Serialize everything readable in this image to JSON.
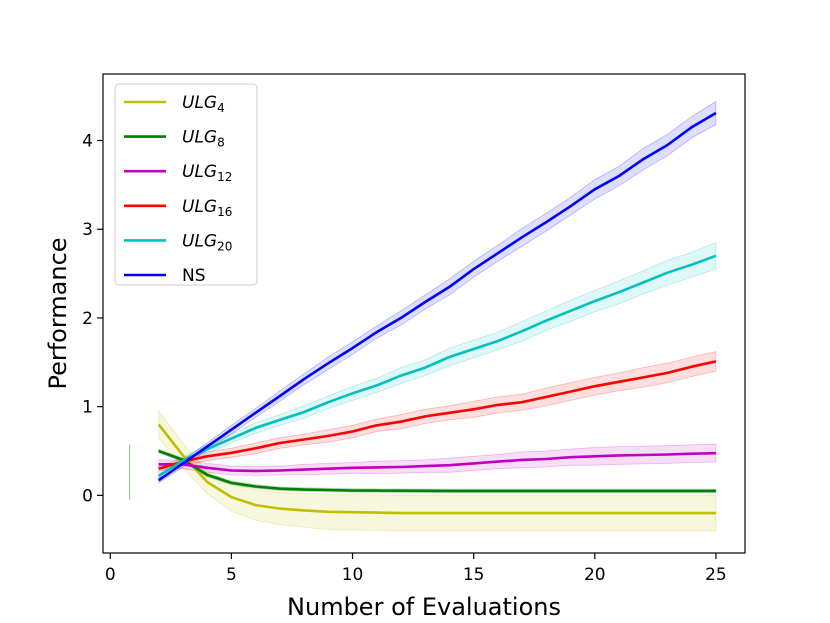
{
  "chart_data": {
    "type": "line",
    "title": "",
    "xlabel": "Number of Evaluations",
    "ylabel": "Performance",
    "xlim": [
      -0.3,
      26.2
    ],
    "ylim": [
      -0.65,
      4.75
    ],
    "xticks": [
      0,
      5,
      10,
      15,
      20,
      25
    ],
    "yticks": [
      0,
      1,
      2,
      3,
      4
    ],
    "legend_position": "top-left",
    "x": [
      2,
      3,
      4,
      5,
      6,
      7,
      8,
      9,
      10,
      11,
      12,
      13,
      14,
      15,
      16,
      17,
      18,
      19,
      20,
      21,
      22,
      23,
      24,
      25
    ],
    "series": [
      {
        "name": "ULG",
        "sub": "4",
        "color": "#bfbf00",
        "values": [
          0.8,
          0.45,
          0.15,
          -0.02,
          -0.11,
          -0.15,
          -0.17,
          -0.185,
          -0.19,
          -0.195,
          -0.2,
          -0.2,
          -0.2,
          -0.2,
          -0.2,
          -0.2,
          -0.2,
          -0.2,
          -0.2,
          -0.2,
          -0.2,
          -0.2,
          -0.2,
          -0.2
        ],
        "band": [
          0.15,
          0.14,
          0.13,
          0.16,
          0.17,
          0.18,
          0.19,
          0.2,
          0.2,
          0.2,
          0.2,
          0.2,
          0.2,
          0.2,
          0.2,
          0.2,
          0.2,
          0.2,
          0.2,
          0.2,
          0.2,
          0.2,
          0.2,
          0.2
        ]
      },
      {
        "name": "ULG",
        "sub": "8",
        "color": "#007f00",
        "values": [
          0.5,
          0.4,
          0.23,
          0.14,
          0.1,
          0.075,
          0.065,
          0.06,
          0.055,
          0.053,
          0.052,
          0.051,
          0.05,
          0.05,
          0.05,
          0.05,
          0.05,
          0.05,
          0.05,
          0.05,
          0.05,
          0.05,
          0.05,
          0.05
        ],
        "band": [
          0.02,
          0.02,
          0.02,
          0.02,
          0.02,
          0.02,
          0.02,
          0.02,
          0.02,
          0.02,
          0.02,
          0.02,
          0.02,
          0.02,
          0.02,
          0.02,
          0.02,
          0.02,
          0.02,
          0.02,
          0.02,
          0.02,
          0.02,
          0.02
        ]
      },
      {
        "name": "ULG",
        "sub": "12",
        "color": "#bf00bf",
        "values": [
          0.35,
          0.35,
          0.31,
          0.28,
          0.275,
          0.28,
          0.29,
          0.3,
          0.31,
          0.315,
          0.32,
          0.33,
          0.34,
          0.36,
          0.38,
          0.4,
          0.41,
          0.43,
          0.44,
          0.45,
          0.455,
          0.46,
          0.47,
          0.475
        ],
        "band": [
          0.05,
          0.05,
          0.05,
          0.05,
          0.05,
          0.05,
          0.06,
          0.06,
          0.06,
          0.07,
          0.07,
          0.07,
          0.08,
          0.08,
          0.08,
          0.09,
          0.09,
          0.09,
          0.1,
          0.1,
          0.1,
          0.1,
          0.1,
          0.1
        ]
      },
      {
        "name": "ULG",
        "sub": "16",
        "color": "#ff0000",
        "values": [
          0.3,
          0.38,
          0.44,
          0.48,
          0.53,
          0.59,
          0.63,
          0.67,
          0.72,
          0.79,
          0.83,
          0.89,
          0.93,
          0.97,
          1.02,
          1.05,
          1.11,
          1.17,
          1.23,
          1.28,
          1.33,
          1.38,
          1.45,
          1.51
        ],
        "band": [
          0.03,
          0.04,
          0.05,
          0.05,
          0.06,
          0.06,
          0.06,
          0.07,
          0.07,
          0.07,
          0.08,
          0.08,
          0.08,
          0.09,
          0.09,
          0.09,
          0.1,
          0.1,
          0.1,
          0.1,
          0.11,
          0.11,
          0.11,
          0.11
        ]
      },
      {
        "name": "ULG",
        "sub": "20",
        "color": "#00bfbf",
        "values": [
          0.22,
          0.39,
          0.52,
          0.64,
          0.76,
          0.85,
          0.94,
          1.05,
          1.15,
          1.24,
          1.35,
          1.44,
          1.56,
          1.65,
          1.74,
          1.85,
          1.97,
          2.08,
          2.19,
          2.29,
          2.4,
          2.51,
          2.6,
          2.7
        ],
        "band": [
          0.03,
          0.04,
          0.05,
          0.05,
          0.06,
          0.06,
          0.07,
          0.07,
          0.08,
          0.08,
          0.09,
          0.09,
          0.1,
          0.1,
          0.1,
          0.11,
          0.11,
          0.12,
          0.12,
          0.13,
          0.13,
          0.14,
          0.14,
          0.15
        ]
      },
      {
        "name": "NS",
        "sub": "",
        "color": "#0000ff",
        "values": [
          0.17,
          0.36,
          0.55,
          0.74,
          0.93,
          1.12,
          1.31,
          1.49,
          1.66,
          1.84,
          2.0,
          2.18,
          2.35,
          2.55,
          2.73,
          2.91,
          3.08,
          3.26,
          3.45,
          3.6,
          3.79,
          3.95,
          4.15,
          4.31
        ],
        "band": [
          0.03,
          0.04,
          0.04,
          0.05,
          0.05,
          0.06,
          0.06,
          0.07,
          0.07,
          0.07,
          0.08,
          0.08,
          0.09,
          0.09,
          0.09,
          0.1,
          0.1,
          0.1,
          0.11,
          0.11,
          0.12,
          0.12,
          0.12,
          0.13
        ]
      }
    ],
    "stray_mark": {
      "x": 0.8,
      "y_min": -0.05,
      "y_max": 0.57,
      "color": "#8fd18f"
    }
  }
}
